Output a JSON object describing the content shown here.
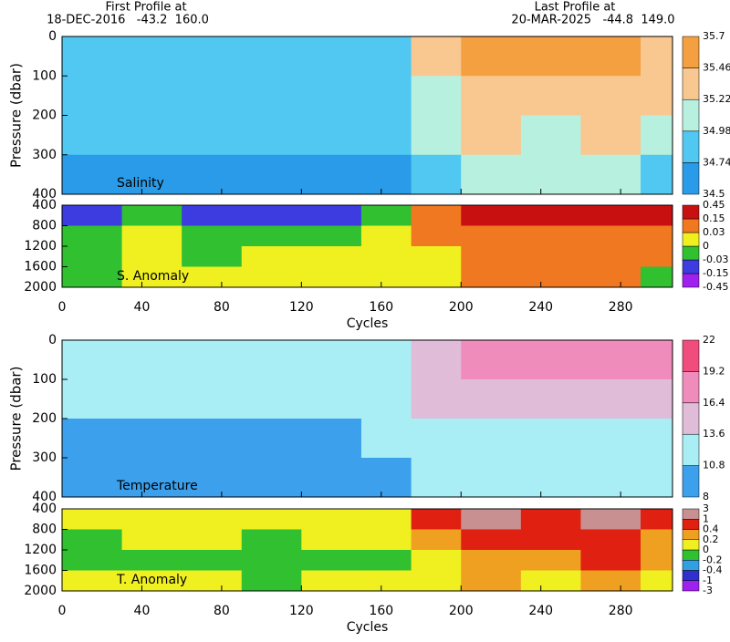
{
  "header": {
    "first_label": "First Profile at",
    "first_info": "18-DEC-2016   -43.2  160.0",
    "last_label": "Last Profile at",
    "last_info": "20-MAR-2025   -44.8  149.0"
  },
  "chart_data": [
    {
      "type": "heatmap",
      "title": "Salinity",
      "ylabel": "Pressure (dbar)",
      "xlim": [
        0,
        306
      ],
      "xticks": [
        0,
        40,
        80,
        120,
        160,
        200,
        240,
        280
      ],
      "ylim": [
        0,
        400
      ],
      "yticks": [
        0,
        100,
        200,
        300,
        400
      ],
      "x_edges": [
        0,
        30,
        60,
        90,
        120,
        150,
        175,
        200,
        230,
        260,
        290,
        306
      ],
      "y_edges": [
        0,
        100,
        200,
        300,
        400
      ],
      "values": [
        [
          34.9,
          34.88,
          34.9,
          34.85,
          34.9,
          34.95,
          35.3,
          35.55,
          35.5,
          35.55,
          35.45
        ],
        [
          34.82,
          34.8,
          34.82,
          34.8,
          34.82,
          34.85,
          35.15,
          35.4,
          35.35,
          35.4,
          35.3
        ],
        [
          34.76,
          34.75,
          34.76,
          34.74,
          34.76,
          34.78,
          35.0,
          35.25,
          35.2,
          35.25,
          35.15
        ],
        [
          34.7,
          34.68,
          34.7,
          34.68,
          34.7,
          34.72,
          34.9,
          35.05,
          35.0,
          35.05,
          34.95
        ]
      ],
      "colorbar": {
        "ticks": [
          34.5,
          34.74,
          34.98,
          35.22,
          35.46,
          35.7
        ],
        "colors": [
          "#2a9be8",
          "#50c8f2",
          "#b8f0e0",
          "#f8c890",
          "#f5a040"
        ]
      }
    },
    {
      "type": "heatmap",
      "title": "S. Anomaly",
      "xlabel": "Cycles",
      "xlim": [
        0,
        306
      ],
      "xticks": [
        0,
        40,
        80,
        120,
        160,
        200,
        240,
        280
      ],
      "ylim": [
        400,
        2000
      ],
      "yticks": [
        400,
        800,
        1200,
        1600,
        2000
      ],
      "x_edges": [
        0,
        30,
        60,
        90,
        120,
        150,
        175,
        200,
        230,
        260,
        290,
        306
      ],
      "y_edges": [
        400,
        800,
        1200,
        1600,
        2000
      ],
      "values": [
        [
          -0.05,
          -0.01,
          -0.05,
          -0.04,
          -0.05,
          -0.02,
          0.1,
          0.2,
          0.2,
          0.18,
          0.2
        ],
        [
          -0.01,
          0.01,
          -0.01,
          -0.01,
          -0.01,
          0.01,
          0.05,
          0.12,
          0.1,
          0.1,
          0.12
        ],
        [
          -0.01,
          0.0,
          -0.01,
          0.0,
          0.0,
          0.01,
          0.02,
          0.08,
          0.1,
          0.06,
          0.05
        ],
        [
          -0.01,
          0.01,
          0.01,
          0.01,
          0.02,
          0.01,
          0.02,
          0.06,
          0.04,
          0.04,
          -0.01
        ]
      ],
      "colorbar": {
        "ticks": [
          -0.45,
          -0.15,
          -0.03,
          0,
          0.03,
          0.15,
          0.45
        ],
        "colors": [
          "#a020f0",
          "#3c3ce0",
          "#30c030",
          "#f0f020",
          "#f07820",
          "#c81010"
        ]
      }
    },
    {
      "type": "heatmap",
      "title": "Temperature",
      "ylabel": "Pressure (dbar)",
      "xlim": [
        0,
        306
      ],
      "xticks": [
        0,
        40,
        80,
        120,
        160,
        200,
        240,
        280
      ],
      "ylim": [
        0,
        400
      ],
      "yticks": [
        0,
        100,
        200,
        300,
        400
      ],
      "x_edges": [
        0,
        30,
        60,
        90,
        120,
        150,
        175,
        200,
        230,
        260,
        290,
        306
      ],
      "y_edges": [
        0,
        100,
        200,
        300,
        400
      ],
      "values": [
        [
          12.5,
          12,
          12.8,
          12,
          12.3,
          13,
          15,
          17.5,
          17,
          17.5,
          16.5
        ],
        [
          11.5,
          11,
          11.5,
          11,
          11.2,
          11.8,
          13.8,
          15,
          14.5,
          15,
          14
        ],
        [
          10.5,
          10.2,
          10.6,
          10.5,
          10.5,
          10.8,
          12.5,
          13.5,
          13,
          13.5,
          12.8
        ],
        [
          9.8,
          9.6,
          10,
          9.8,
          9.8,
          10,
          11.2,
          12,
          11.5,
          12,
          11.5
        ]
      ],
      "colorbar": {
        "ticks": [
          8,
          10.8,
          13.6,
          16.4,
          19.2,
          22
        ],
        "colors": [
          "#3ca0ec",
          "#a8eef4",
          "#e0bcd8",
          "#f08cbc",
          "#f04c7c"
        ]
      }
    },
    {
      "type": "heatmap",
      "title": "T. Anomaly",
      "xlabel": "Cycles",
      "xlim": [
        0,
        306
      ],
      "xticks": [
        0,
        40,
        80,
        120,
        160,
        200,
        240,
        280
      ],
      "ylim": [
        400,
        2000
      ],
      "yticks": [
        400,
        800,
        1200,
        1600,
        2000
      ],
      "x_edges": [
        0,
        30,
        60,
        90,
        120,
        150,
        175,
        200,
        230,
        260,
        290,
        306
      ],
      "y_edges": [
        400,
        800,
        1200,
        1600,
        2000
      ],
      "values": [
        [
          0.1,
          0.15,
          0.1,
          0.1,
          0.1,
          0.1,
          0.5,
          1.2,
          0.6,
          1.2,
          0.5
        ],
        [
          -0.05,
          0.05,
          0.05,
          -0.05,
          0.05,
          0.05,
          0.3,
          0.8,
          0.5,
          0.8,
          0.3
        ],
        [
          -0.05,
          -0.05,
          -0.05,
          -0.1,
          -0.05,
          -0.05,
          0.15,
          0.3,
          0.25,
          0.5,
          0.2
        ],
        [
          0.05,
          0.1,
          0.05,
          -0.05,
          0.05,
          0.05,
          0.1,
          0.2,
          0.15,
          0.3,
          0.05
        ]
      ],
      "colorbar": {
        "ticks": [
          -3,
          -1,
          -0.4,
          -0.2,
          0,
          0.2,
          0.4,
          1,
          3
        ],
        "colors": [
          "#a020f0",
          "#3030d0",
          "#30a0e0",
          "#30c030",
          "#f0f020",
          "#f0a020",
          "#e02010",
          "#c89090"
        ]
      }
    }
  ]
}
